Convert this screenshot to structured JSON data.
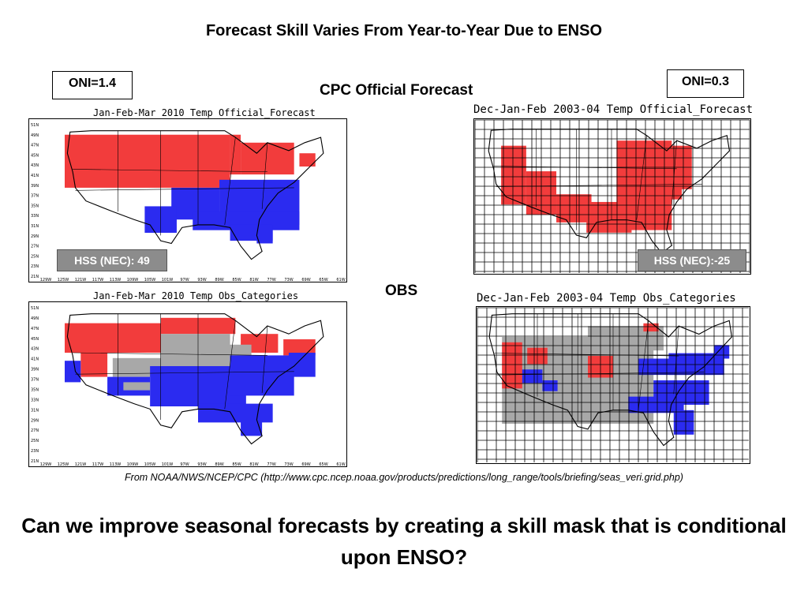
{
  "slide": {
    "title": "Forecast Skill Varies From Year-to-Year Due to ENSO",
    "official_label": "CPC Official Forecast",
    "obs_label": "OBS",
    "source": "From NOAA/NWS/NCEP/CPC  (http://www.cpc.ncep.noaa.gov/products/predictions/long_range/tools/briefing/seas_veri.grid.php)",
    "question": "Can we improve seasonal forecasts by creating a skill mask that is conditional upon ENSO?"
  },
  "colors": {
    "above": "#f23c3c",
    "below": "#2b2bf0",
    "normal": "#a8a8a8",
    "hss_box": "#8c8c8c"
  },
  "left_case": {
    "oni": "ONI=1.4",
    "forecast_title": "Jan-Feb-Mar 2010 Temp Official_Forecast",
    "obs_title": "Jan-Feb-Mar 2010 Temp Obs_Categories",
    "hss": "HSS (NEC): 49",
    "lat_ticks": [
      "51N",
      "49N",
      "47N",
      "45N",
      "43N",
      "41N",
      "39N",
      "37N",
      "35N",
      "33N",
      "31N",
      "29N",
      "27N",
      "25N",
      "23N",
      "21N"
    ],
    "lon_ticks": [
      "129W",
      "125W",
      "121W",
      "117W",
      "113W",
      "109W",
      "105W",
      "101W",
      "97W",
      "93W",
      "89W",
      "85W",
      "81W",
      "77W",
      "73W",
      "69W",
      "65W",
      "61W"
    ]
  },
  "right_case": {
    "oni": "ONI=0.3",
    "forecast_title": "Dec-Jan-Feb 2003-04 Temp Official_Forecast",
    "obs_title": "Dec-Jan-Feb 2003-04 Temp Obs_Categories",
    "hss": "HSS (NEC):-25"
  }
}
